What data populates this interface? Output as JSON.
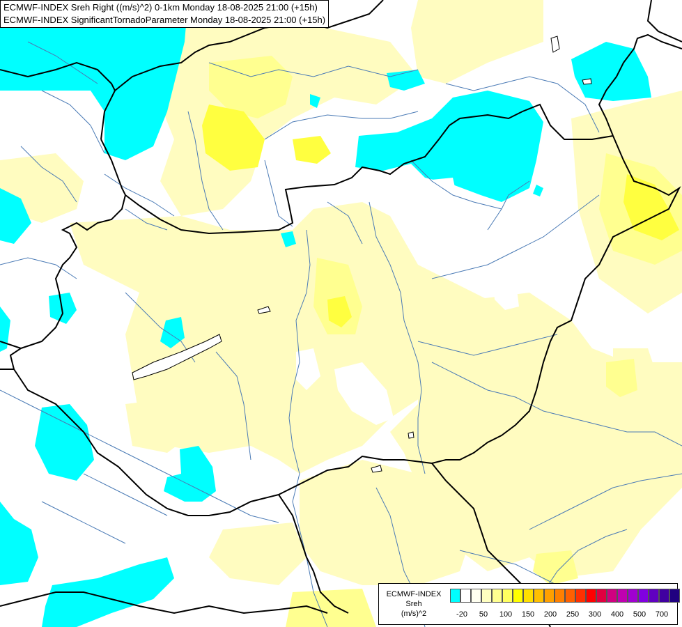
{
  "title": {
    "line1": "ECMWF-INDEX Sreh Right ((m/s)^2) 0-1km Monday 18-08-2025 21:00 (+15h)",
    "line2": "ECMWF-INDEX SignificantTornadoParameter Monday 18-08-2025 21:00 (+15h)"
  },
  "legend": {
    "line1": "ECMWF-INDEX",
    "line2": "Sreh",
    "line3": "(m/s)^2",
    "colors": [
      "#00ffff",
      "#ffffff",
      "#fffff0",
      "#ffffc0",
      "#ffff90",
      "#ffff60",
      "#ffff00",
      "#ffe000",
      "#ffc000",
      "#ffa000",
      "#ff8000",
      "#ff6000",
      "#ff3000",
      "#ff0000",
      "#e00040",
      "#d00080",
      "#c000b0",
      "#a000d0",
      "#8000e0",
      "#6000c0",
      "#4000a0",
      "#200080"
    ],
    "ticks": [
      "-20",
      "50",
      "100",
      "150",
      "200",
      "250",
      "300",
      "400",
      "500",
      "700"
    ]
  },
  "colors": {
    "cyan": "#00ffff",
    "pale_yellow": "#ffffc0",
    "light_yellow": "#ffff90",
    "yellow": "#ffff40",
    "border": "#000000",
    "river": "#4a7ab5"
  }
}
